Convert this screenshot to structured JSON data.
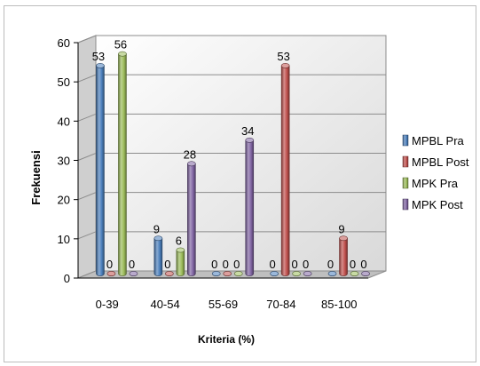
{
  "chart_data": {
    "type": "bar",
    "categories": [
      "0-39",
      "40-54",
      "55-69",
      "70-84",
      "85-100"
    ],
    "series": [
      {
        "name": "MPBL Pra",
        "values": [
          53,
          9,
          0,
          0,
          0
        ],
        "color": "#4a7ebb"
      },
      {
        "name": "MPBL Post",
        "values": [
          0,
          0,
          0,
          53,
          9
        ],
        "color": "#c0504d"
      },
      {
        "name": "MPK Pra",
        "values": [
          56,
          6,
          0,
          0,
          0
        ],
        "color": "#9bbb59"
      },
      {
        "name": "MPK Post",
        "values": [
          0,
          28,
          34,
          0,
          0
        ],
        "color": "#8064a2"
      }
    ],
    "xlabel": "Kriteria (%)",
    "ylabel": "Frekuensi",
    "ylim": [
      0,
      60
    ],
    "yticks": [
      0,
      10,
      20,
      30,
      40,
      50,
      60
    ],
    "grid": true,
    "legend": "right",
    "style": "3d-cylinder"
  }
}
